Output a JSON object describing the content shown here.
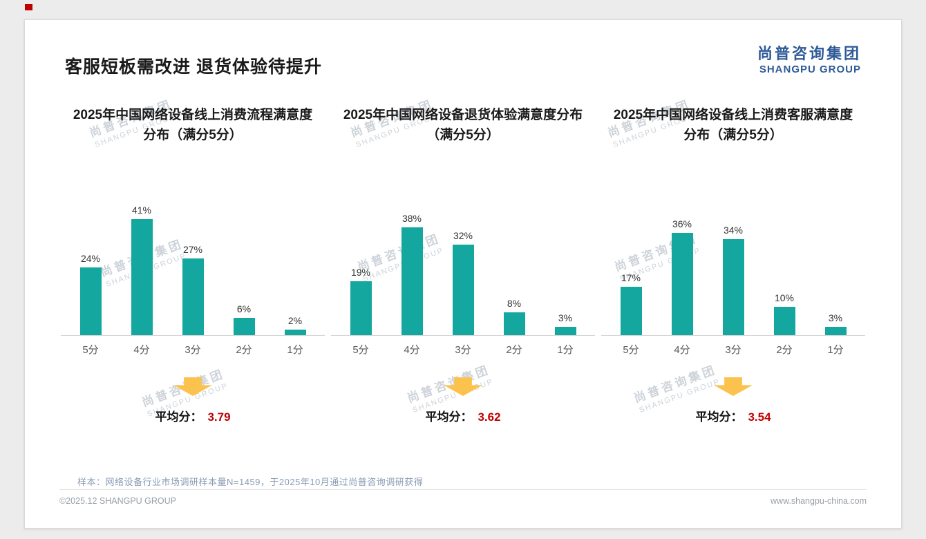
{
  "page": {
    "title": "客服短板需改进 退货体验待提升",
    "logo": {
      "cn": "尚普咨询集团",
      "en": "SHANGPU GROUP"
    },
    "watermark": {
      "cn": "尚普咨询集团",
      "en": "SHANGPU GROUP"
    },
    "footer": {
      "note": "样本：网络设备行业市场调研样本量N=1459，于2025年10月通过尚普咨询调研获得",
      "copyright": "©2025.12 SHANGPU GROUP",
      "website": "www.shangpu-china.com"
    },
    "colors": {
      "bar": "#14a7a0",
      "arrow": "#fbc34d",
      "average_red": "#c00000",
      "logo_blue": "#2e5a97",
      "accent_red": "#c00000"
    }
  },
  "chart_data": [
    {
      "type": "bar",
      "title": "2025年中国网络设备线上消费流程满意度分布（满分5分）",
      "categories": [
        "5分",
        "4分",
        "3分",
        "2分",
        "1分"
      ],
      "values": [
        24,
        41,
        27,
        6,
        2
      ],
      "value_labels": [
        "24%",
        "41%",
        "27%",
        "6%",
        "2%"
      ],
      "average_label": "平均分：",
      "average": "3.79",
      "ylim": [
        0,
        45
      ],
      "grid": false,
      "legend": "none"
    },
    {
      "type": "bar",
      "title": "2025年中国网络设备退货体验满意度分布（满分5分）",
      "categories": [
        "5分",
        "4分",
        "3分",
        "2分",
        "1分"
      ],
      "values": [
        19,
        38,
        32,
        8,
        3
      ],
      "value_labels": [
        "19%",
        "38%",
        "32%",
        "8%",
        "3%"
      ],
      "average_label": "平均分：",
      "average": "3.62",
      "ylim": [
        0,
        45
      ],
      "grid": false,
      "legend": "none"
    },
    {
      "type": "bar",
      "title": "2025年中国网络设备线上消费客服满意度分布（满分5分）",
      "categories": [
        "5分",
        "4分",
        "3分",
        "2分",
        "1分"
      ],
      "values": [
        17,
        36,
        34,
        10,
        3
      ],
      "value_labels": [
        "17%",
        "36%",
        "34%",
        "10%",
        "3%"
      ],
      "average_label": "平均分：",
      "average": "3.54",
      "ylim": [
        0,
        45
      ],
      "grid": false,
      "legend": "none"
    }
  ]
}
